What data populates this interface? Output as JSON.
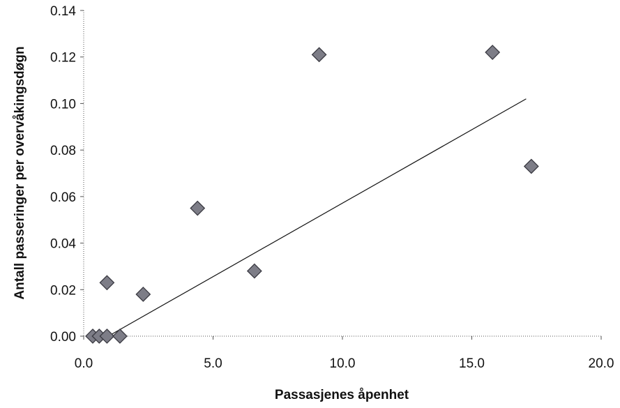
{
  "chart_data": {
    "type": "scatter",
    "title": "",
    "xlabel": "Passasjenes åpenhet",
    "ylabel": "Antall passeringer per overvåkingsdøgn",
    "xlim": [
      0,
      20
    ],
    "ylim": [
      0,
      0.14
    ],
    "x_ticks": [
      "0.0",
      "5.0",
      "10.0",
      "15.0",
      "20.0"
    ],
    "y_ticks": [
      "0.00",
      "0.02",
      "0.04",
      "0.06",
      "0.08",
      "0.10",
      "0.12",
      "0.14"
    ],
    "grid": false,
    "legend": "none",
    "series": [
      {
        "points": [
          {
            "x": 0.35,
            "y": 0.0
          },
          {
            "x": 0.6,
            "y": 0.0
          },
          {
            "x": 0.9,
            "y": 0.0
          },
          {
            "x": 1.4,
            "y": 0.0
          },
          {
            "x": 0.9,
            "y": 0.023
          },
          {
            "x": 2.3,
            "y": 0.018
          },
          {
            "x": 4.4,
            "y": 0.055
          },
          {
            "x": 6.6,
            "y": 0.028
          },
          {
            "x": 9.1,
            "y": 0.121
          },
          {
            "x": 15.8,
            "y": 0.122
          },
          {
            "x": 17.3,
            "y": 0.073
          }
        ],
        "marker": "diamond",
        "color": "#7d7d87"
      }
    ],
    "trendline": {
      "x": [
        0.95,
        17.1
      ],
      "y": [
        0.0,
        0.102
      ],
      "color": "#111111"
    }
  }
}
